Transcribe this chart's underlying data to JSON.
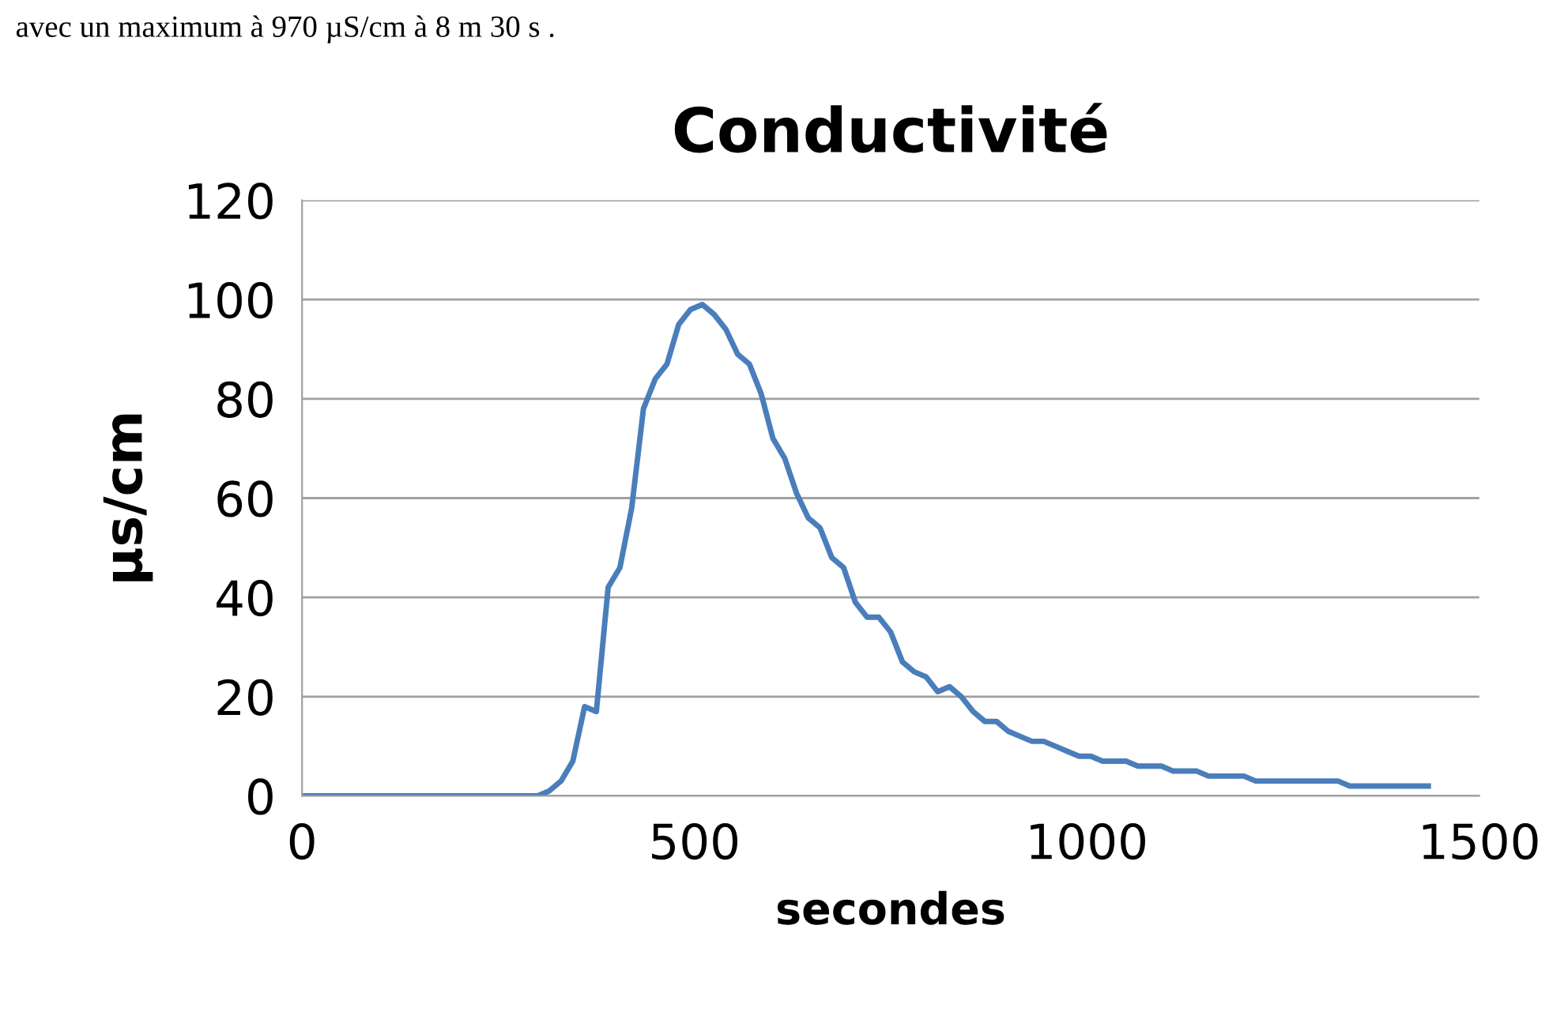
{
  "chart_data": {
    "type": "line",
    "title": "Conductivité",
    "xlabel": "secondes",
    "ylabel": "µs/cm",
    "annotations": [
      "avec un maximum à 970 µS/cm à 8 m 30 s ."
    ],
    "xlim": [
      0,
      1500
    ],
    "xticks": [
      0,
      500,
      1000,
      1500
    ],
    "ylim": [
      0,
      120
    ],
    "yticks": [
      0,
      20,
      40,
      60,
      80,
      100,
      120
    ],
    "grid": "y",
    "marker": "none",
    "line_style": "solid",
    "series": [
      {
        "color": "#4a7ebb",
        "x": [
          0,
          300,
          315,
          330,
          345,
          360,
          375,
          390,
          405,
          420,
          435,
          450,
          465,
          480,
          495,
          510,
          525,
          540,
          555,
          570,
          585,
          600,
          615,
          630,
          645,
          660,
          675,
          690,
          705,
          720,
          735,
          750,
          765,
          780,
          795,
          810,
          825,
          840,
          855,
          870,
          885,
          900,
          915,
          930,
          945,
          960,
          975,
          990,
          1005,
          1020,
          1035,
          1050,
          1065,
          1080,
          1095,
          1110,
          1125,
          1140,
          1155,
          1170,
          1185,
          1200,
          1215,
          1230,
          1245,
          1260,
          1275,
          1290,
          1305,
          1320,
          1335,
          1350,
          1365,
          1380,
          1395,
          1410,
          1425,
          1435
        ],
        "values": [
          0,
          0,
          1,
          3,
          7,
          18,
          17,
          42,
          46,
          58,
          78,
          84,
          87,
          95,
          98,
          99,
          97,
          94,
          89,
          87,
          81,
          72,
          68,
          61,
          56,
          54,
          48,
          46,
          39,
          36,
          36,
          33,
          27,
          25,
          24,
          21,
          22,
          20,
          17,
          15,
          15,
          13,
          12,
          11,
          11,
          10,
          9,
          8,
          8,
          7,
          7,
          7,
          6,
          6,
          6,
          5,
          5,
          5,
          4,
          4,
          4,
          4,
          3,
          3,
          3,
          3,
          3,
          3,
          3,
          3,
          2,
          2,
          2,
          2,
          2,
          2,
          2,
          2
        ]
      }
    ]
  }
}
